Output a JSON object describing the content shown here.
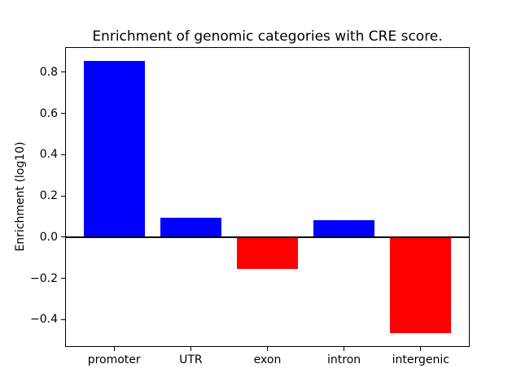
{
  "figure": {
    "title": "Enrichment of genomic categories with CRE score.",
    "ylabel": "Enrichment (log10)"
  },
  "chart_data": {
    "type": "bar",
    "title": "Enrichment of genomic categories with CRE score.",
    "xlabel": "",
    "ylabel": "Enrichment (log10)",
    "categories": [
      "promoter",
      "UTR",
      "exon",
      "intron",
      "intergenic"
    ],
    "values": [
      0.855,
      0.093,
      -0.155,
      0.08,
      -0.465
    ],
    "bar_colors": [
      "#0000ff",
      "#0000ff",
      "#ff0000",
      "#0000ff",
      "#ff0000"
    ],
    "positive_color": "#0000ff",
    "negative_color": "#ff0000",
    "ylim": [
      -0.533,
      0.921
    ],
    "xlim": [
      -0.64,
      4.64
    ],
    "yticks": [
      0.8,
      0.6,
      0.4,
      0.2,
      0.0,
      -0.2,
      -0.4
    ],
    "ytick_labels": [
      "0.8",
      "0.6",
      "0.4",
      "0.2",
      "0.0",
      "−0.2",
      "−0.4"
    ],
    "grid": false,
    "legend": null,
    "zero_line": true,
    "bar_width_fraction": 0.8,
    "axis_color": "#000000",
    "background_color": "#ffffff"
  }
}
